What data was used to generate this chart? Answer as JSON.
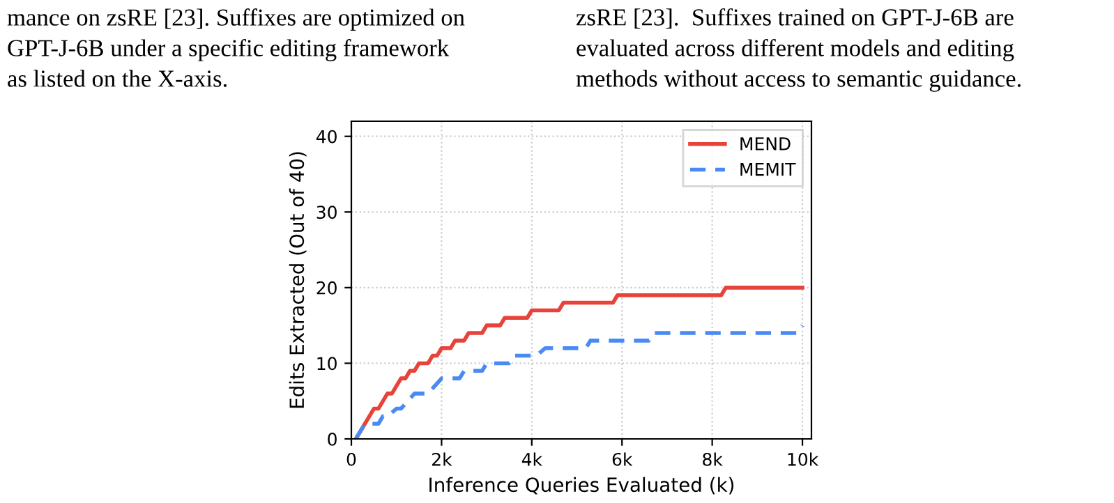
{
  "chart_data": {
    "type": "line",
    "xlabel": "Inference Queries Evaluated (k)",
    "ylabel": "Edits Extracted (Out of 40)",
    "annotations": [
      "mance on zsRE [23]. Suffixes are optimized on",
      "GPT-J-6B under a specific editing framework",
      "as listed on the X-axis.",
      "zsRE [23].  Suffixes trained on GPT-J-6B are",
      "evaluated across different models and editing",
      "methods without access to semantic guidance."
    ],
    "series": [
      {
        "name": "MEND",
        "color": "#e8433a",
        "line_style": "solid",
        "x": [
          100,
          500,
          600,
          800,
          900,
          1100,
          1200,
          1300,
          1400,
          1500,
          1700,
          1800,
          1900,
          2000,
          2200,
          2300,
          2500,
          2600,
          2900,
          3000,
          3300,
          3400,
          3900,
          4000,
          4600,
          4700,
          5800,
          5900,
          8200,
          8300,
          10000
        ],
        "values": [
          0,
          4,
          4,
          6,
          6,
          8,
          8,
          9,
          9,
          10,
          10,
          11,
          11,
          12,
          12,
          13,
          13,
          14,
          14,
          15,
          15,
          16,
          16,
          17,
          17,
          18,
          18,
          19,
          19,
          20,
          20
        ]
      },
      {
        "name": "MEMIT",
        "color": "#4a8af4",
        "line_style": "dashed",
        "x": [
          100,
          300,
          600,
          700,
          800,
          1000,
          1100,
          1400,
          1700,
          2000,
          2400,
          2500,
          2900,
          3000,
          3500,
          3600,
          4100,
          4300,
          5200,
          5300,
          6600,
          6700,
          9900,
          10000
        ],
        "values": [
          0,
          2,
          2,
          3,
          3,
          4,
          4,
          6,
          6,
          8,
          8,
          9,
          9,
          10,
          10,
          11,
          11,
          12,
          12,
          13,
          13,
          14,
          14,
          15
        ]
      }
    ],
    "xlim": [
      0,
      10200
    ],
    "ylim": [
      0,
      42
    ],
    "xticks": [
      0,
      {
        "value": 2000,
        "label": "2k"
      },
      {
        "value": 4000,
        "label": "4k"
      },
      {
        "value": 6000,
        "label": "6k"
      },
      {
        "value": 8000,
        "label": "8k"
      },
      {
        "value": 10000,
        "label": "10k"
      }
    ],
    "yticks": [
      0,
      10,
      20,
      30,
      40
    ],
    "grid": true,
    "legend": "top right",
    "marker": "none"
  }
}
